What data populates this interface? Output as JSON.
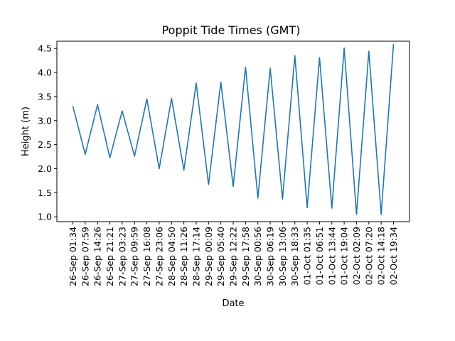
{
  "chart_data": {
    "type": "line",
    "title": "Poppit Tide Times (GMT)",
    "xlabel": "Date",
    "ylabel": "Height (m)",
    "ylim": [
      0.9,
      4.65
    ],
    "yticks": [
      "1.0",
      "1.5",
      "2.0",
      "2.5",
      "3.0",
      "3.5",
      "4.0",
      "4.5"
    ],
    "grid": false,
    "line_color": "#1f77b4",
    "categories": [
      "26-Sep 01:34",
      "26-Sep 07:59",
      "26-Sep 14:26",
      "26-Sep 21:21",
      "27-Sep 03:23",
      "27-Sep 09:59",
      "27-Sep 16:08",
      "27-Sep 23:06",
      "28-Sep 04:50",
      "28-Sep 11:26",
      "28-Sep 17:14",
      "29-Sep 00:09",
      "29-Sep 05:40",
      "29-Sep 12:22",
      "29-Sep 17:58",
      "30-Sep 00:56",
      "30-Sep 06:19",
      "30-Sep 13:06",
      "30-Sep 18:33",
      "01-Oct 01:35",
      "01-Oct 06:51",
      "01-Oct 13:44",
      "01-Oct 19:04",
      "02-Oct 02:09",
      "02-Oct 07:20",
      "02-Oct 14:18",
      "02-Oct 19:34"
    ],
    "values": [
      3.3,
      2.3,
      3.33,
      2.23,
      3.2,
      2.26,
      3.45,
      2.0,
      3.46,
      1.97,
      3.78,
      1.67,
      3.8,
      1.63,
      4.11,
      1.39,
      4.09,
      1.37,
      4.35,
      1.19,
      4.31,
      1.18,
      4.51,
      1.05,
      4.44,
      1.05,
      4.59
    ]
  }
}
